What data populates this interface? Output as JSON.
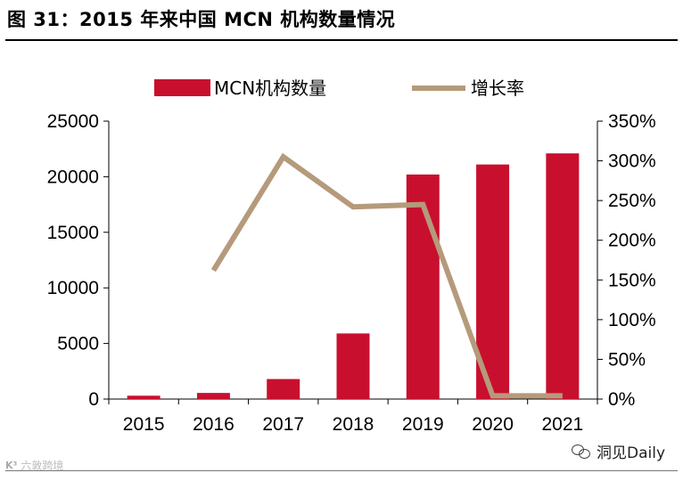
{
  "figure_title": "图 31：2015 年来中国 MCN 机构数量情况",
  "chart_data": {
    "type": "bar+line",
    "categories": [
      "2015",
      "2016",
      "2017",
      "2018",
      "2019",
      "2020",
      "2021"
    ],
    "series": [
      {
        "name": "MCN机构数量",
        "type": "bar",
        "axis": "left",
        "values": [
          300,
          550,
          1800,
          5900,
          20200,
          21100,
          22100
        ]
      },
      {
        "name": "增长率",
        "type": "line",
        "axis": "right",
        "values": [
          null,
          162,
          305,
          242,
          245,
          4,
          4
        ]
      }
    ],
    "left_axis": {
      "ylim": [
        0,
        25000
      ],
      "ticks": [
        0,
        5000,
        10000,
        15000,
        20000,
        25000
      ],
      "tick_labels": [
        "0",
        "5000",
        "10000",
        "15000",
        "20000",
        "25000"
      ]
    },
    "right_axis": {
      "ylim": [
        0,
        350
      ],
      "ticks": [
        0,
        50,
        100,
        150,
        200,
        250,
        300,
        350
      ],
      "tick_labels": [
        "0%",
        "50%",
        "100%",
        "150%",
        "200%",
        "250%",
        "300%",
        "350%"
      ]
    },
    "colors": {
      "bar": "#c8102e",
      "line": "#b59a7b",
      "axis": "#000000"
    },
    "legend_position": "top"
  },
  "watermark": {
    "right_text": "洞见Daily",
    "left_text": "六敦跨境"
  }
}
